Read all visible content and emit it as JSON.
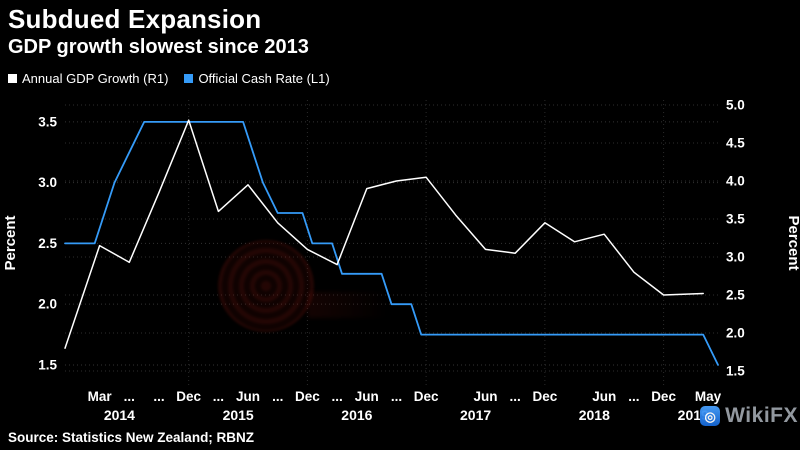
{
  "header": {},
  "chart_data": {
    "type": "line",
    "title": "Subdued Expansion",
    "subtitle": "GDP growth slowest since 2013",
    "legend_position": "top-left",
    "grid": true,
    "background": "#000000",
    "left_axis": {
      "label": "Percent",
      "tick_labels": [
        "1.5",
        "2.0",
        "2.5",
        "3.0",
        "3.5"
      ],
      "tick_values": [
        1.5,
        2.0,
        2.5,
        3.0,
        3.5
      ],
      "ylim": [
        1.5,
        3.5
      ],
      "range": [
        1.335,
        3.68
      ]
    },
    "right_axis": {
      "label": "Percent",
      "tick_labels": [
        "1.5",
        "2.0",
        "2.5",
        "3.0",
        "3.5",
        "4.0",
        "4.5",
        "5.0"
      ],
      "tick_values": [
        1.5,
        2.0,
        2.5,
        3.0,
        3.5,
        4.0,
        4.5,
        5.0
      ],
      "ylim": [
        1.5,
        5.0
      ],
      "range": [
        1.316,
        5.066
      ]
    },
    "x_axis": {
      "unit": "months-from-Mar-2014",
      "range_m": [
        -3.5,
        62.5
      ],
      "grid_m": [
        9,
        21,
        33,
        45,
        57
      ],
      "month_ticks": [
        {
          "label": "Mar",
          "m": 0
        },
        {
          "label": "...",
          "m": 3
        },
        {
          "label": "...",
          "m": 6
        },
        {
          "label": "Dec",
          "m": 9
        },
        {
          "label": "...",
          "m": 12
        },
        {
          "label": "Jun",
          "m": 15
        },
        {
          "label": "...",
          "m": 18
        },
        {
          "label": "Dec",
          "m": 21
        },
        {
          "label": "...",
          "m": 24
        },
        {
          "label": "Jun",
          "m": 27
        },
        {
          "label": "...",
          "m": 30
        },
        {
          "label": "Dec",
          "m": 33
        },
        {
          "label": "Jun",
          "m": 39
        },
        {
          "label": "...",
          "m": 42
        },
        {
          "label": "Dec",
          "m": 45
        },
        {
          "label": "Jun",
          "m": 51
        },
        {
          "label": "...",
          "m": 54
        },
        {
          "label": "Dec",
          "m": 57
        },
        {
          "label": "May",
          "m": 62
        }
      ],
      "year_ticks": [
        {
          "label": "2014",
          "m": 2
        },
        {
          "label": "2015",
          "m": 14
        },
        {
          "label": "2016",
          "m": 26
        },
        {
          "label": "2017",
          "m": 38
        },
        {
          "label": "2018",
          "m": 50
        },
        {
          "label": "2019",
          "m": 60
        }
      ]
    },
    "series": [
      {
        "name": "Official Cash Rate (L1)",
        "axis": "left",
        "color": "#359bf8",
        "width": 1.8,
        "points": [
          [
            -3.5,
            2.5
          ],
          [
            -0.5,
            2.5
          ],
          [
            0.5,
            2.75
          ],
          [
            1.5,
            3.0
          ],
          [
            3,
            3.25
          ],
          [
            4.5,
            3.5
          ],
          [
            14.5,
            3.5
          ],
          [
            15.5,
            3.25
          ],
          [
            16.5,
            3.0
          ],
          [
            18,
            2.75
          ],
          [
            20.5,
            2.75
          ],
          [
            21.5,
            2.5
          ],
          [
            23.5,
            2.5
          ],
          [
            24.5,
            2.25
          ],
          [
            28.5,
            2.25
          ],
          [
            29.5,
            2.0
          ],
          [
            31.5,
            2.0
          ],
          [
            32.5,
            1.75
          ],
          [
            61,
            1.75
          ],
          [
            62.5,
            1.5
          ]
        ]
      },
      {
        "name": "Annual GDP Growth (R1)",
        "axis": "right",
        "color": "#ffffff",
        "width": 1.5,
        "points": [
          [
            -3.5,
            1.8
          ],
          [
            0,
            3.15
          ],
          [
            3,
            2.93
          ],
          [
            6,
            3.85
          ],
          [
            9,
            4.8
          ],
          [
            12,
            3.6
          ],
          [
            15,
            3.95
          ],
          [
            18,
            3.45
          ],
          [
            21,
            3.1
          ],
          [
            24,
            2.9
          ],
          [
            27,
            3.9
          ],
          [
            30,
            4.0
          ],
          [
            33,
            4.05
          ],
          [
            36,
            3.55
          ],
          [
            39,
            3.1
          ],
          [
            42,
            3.05
          ],
          [
            45,
            3.45
          ],
          [
            48,
            3.2
          ],
          [
            51,
            3.3
          ],
          [
            54,
            2.8
          ],
          [
            57,
            2.5
          ],
          [
            61,
            2.52
          ]
        ]
      }
    ]
  },
  "legend": {
    "items": [
      {
        "label": "Annual GDP Growth (R1)",
        "color": "#ffffff"
      },
      {
        "label": "Official Cash Rate (L1)",
        "color": "#359bf8"
      }
    ]
  },
  "footer": {
    "source": "Source: Statistics New Zealand; RBNZ"
  },
  "watermarks": {
    "wikifx": "WikiFX",
    "wikifx_icon_glyph": "◎"
  }
}
